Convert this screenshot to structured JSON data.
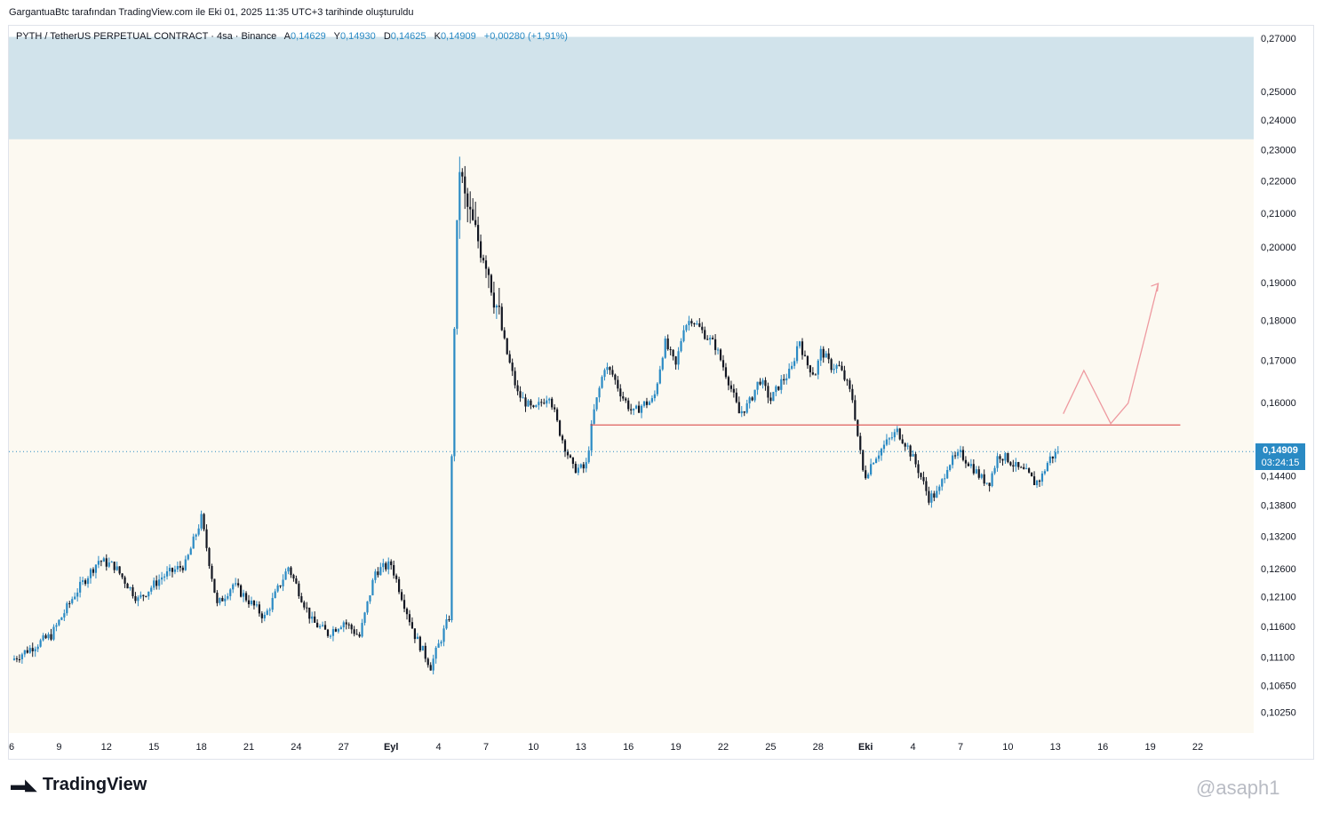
{
  "header": {
    "text": "GargantuaBtc tarafından TradingView.com ile Eki 01, 2025 11:35 UTC+3 tarihinde oluşturuldu"
  },
  "legend": {
    "symbol": "PYTH / TetherUS PERPETUAL CONTRACT · 4sa · Binance",
    "o_label": "A",
    "o_value": "0,14629",
    "h_label": "Y",
    "h_value": "0,14930",
    "l_label": "D",
    "l_value": "0,14625",
    "c_label": "K",
    "c_value": "0,14909",
    "change": "+0,00280 (+1,91%)"
  },
  "price_tag": {
    "price": "0,14909",
    "countdown": "03:24:15"
  },
  "footer": {
    "brand": "TradingView",
    "watermark": "@asaph1"
  },
  "colors": {
    "up": "#2a8ac4",
    "down": "#131722",
    "zone": "#d1e3eb",
    "level": "#d63a3a",
    "arrow": "#ee9aa0",
    "plot_bg": "#fcf9f1"
  },
  "chart_data": {
    "type": "candlestick",
    "y_scale": "log",
    "ylim": [
      0.0995,
      0.2745
    ],
    "y_ticks": [
      "0,27000",
      "0,25000",
      "0,24000",
      "0,23000",
      "0,22000",
      "0,21000",
      "0,20000",
      "0,19000",
      "0,18000",
      "0,17000",
      "0,16000",
      "0,14400",
      "0,13800",
      "0,13200",
      "0,12600",
      "0,12100",
      "0,11600",
      "0,11100",
      "0,10650",
      "0,10250"
    ],
    "x_ticks": [
      "6",
      "9",
      "12",
      "15",
      "18",
      "21",
      "24",
      "27",
      "Eyl",
      "4",
      "7",
      "10",
      "13",
      "16",
      "19",
      "22",
      "25",
      "28",
      "Eki",
      "4",
      "7",
      "10",
      "13",
      "16",
      "19",
      "22"
    ],
    "last_price": 0.14909,
    "supply_zone": {
      "low": 0.2335,
      "high": 0.2705
    },
    "support_level": 0.1549,
    "path_points": [
      [
        0,
        0.1105
      ],
      [
        2.5,
        0.1145
      ],
      [
        4,
        0.1215
      ],
      [
        5.5,
        0.1275
      ],
      [
        6.5,
        0.1265
      ],
      [
        8,
        0.1205
      ],
      [
        9.5,
        0.1245
      ],
      [
        11,
        0.1268
      ],
      [
        12,
        0.1355
      ],
      [
        13,
        0.1195
      ],
      [
        14,
        0.1232
      ],
      [
        16,
        0.1175
      ],
      [
        17.5,
        0.1263
      ],
      [
        19,
        0.1168
      ],
      [
        20,
        0.1148
      ],
      [
        21,
        0.1168
      ],
      [
        22,
        0.1143
      ],
      [
        23,
        0.1255
      ],
      [
        24,
        0.1268
      ],
      [
        25.5,
        0.1145
      ],
      [
        26.5,
        0.1095
      ],
      [
        27.7,
        0.1178
      ],
      [
        27.9,
        0.165
      ],
      [
        28.3,
        0.226
      ],
      [
        28.6,
        0.215
      ],
      [
        29.3,
        0.204
      ],
      [
        30,
        0.197
      ],
      [
        30.5,
        0.187
      ],
      [
        31.3,
        0.172
      ],
      [
        32,
        0.162
      ],
      [
        33,
        0.158
      ],
      [
        34,
        0.162
      ],
      [
        34.6,
        0.154
      ],
      [
        35.5,
        0.1455
      ],
      [
        36.3,
        0.1455
      ],
      [
        36.8,
        0.1575
      ],
      [
        37.5,
        0.1685
      ],
      [
        38,
        0.1665
      ],
      [
        38.6,
        0.1615
      ],
      [
        39.3,
        0.1575
      ],
      [
        39.9,
        0.1595
      ],
      [
        40.6,
        0.1605
      ],
      [
        41.3,
        0.1745
      ],
      [
        42,
        0.1685
      ],
      [
        42.5,
        0.1785
      ],
      [
        43,
        0.1805
      ],
      [
        43.6,
        0.1775
      ],
      [
        44.5,
        0.1735
      ],
      [
        45.3,
        0.1655
      ],
      [
        46,
        0.1575
      ],
      [
        46.6,
        0.1595
      ],
      [
        47.3,
        0.1655
      ],
      [
        48,
        0.1605
      ],
      [
        48.6,
        0.1645
      ],
      [
        49.3,
        0.1675
      ],
      [
        49.8,
        0.1755
      ],
      [
        50.2,
        0.1695
      ],
      [
        50.8,
        0.1665
      ],
      [
        51.2,
        0.1725
      ],
      [
        51.8,
        0.1685
      ],
      [
        52.3,
        0.1685
      ],
      [
        52.8,
        0.1645
      ],
      [
        53.2,
        0.1605
      ],
      [
        53.5,
        0.1525
      ],
      [
        53.9,
        0.1435
      ],
      [
        54.5,
        0.1475
      ],
      [
        55.2,
        0.1505
      ],
      [
        56,
        0.1535
      ],
      [
        56.6,
        0.1505
      ],
      [
        57.3,
        0.1455
      ],
      [
        58,
        0.1395
      ],
      [
        58.6,
        0.1405
      ],
      [
        59.2,
        0.1465
      ],
      [
        60,
        0.1485
      ],
      [
        60.6,
        0.1465
      ],
      [
        61.3,
        0.1435
      ],
      [
        61.8,
        0.1425
      ],
      [
        62.4,
        0.1485
      ],
      [
        63,
        0.1475
      ],
      [
        63.6,
        0.1455
      ],
      [
        64.2,
        0.1445
      ],
      [
        64.7,
        0.1425
      ],
      [
        65.1,
        0.1435
      ],
      [
        65.6,
        0.1475
      ],
      [
        66.2,
        0.1491
      ]
    ],
    "arrow_path": [
      [
        66.5,
        0.1574
      ],
      [
        67.8,
        0.1675
      ],
      [
        69.5,
        0.1552
      ],
      [
        70.6,
        0.1598
      ],
      [
        71.6,
        0.1748
      ],
      [
        72.5,
        0.1898
      ]
    ]
  }
}
